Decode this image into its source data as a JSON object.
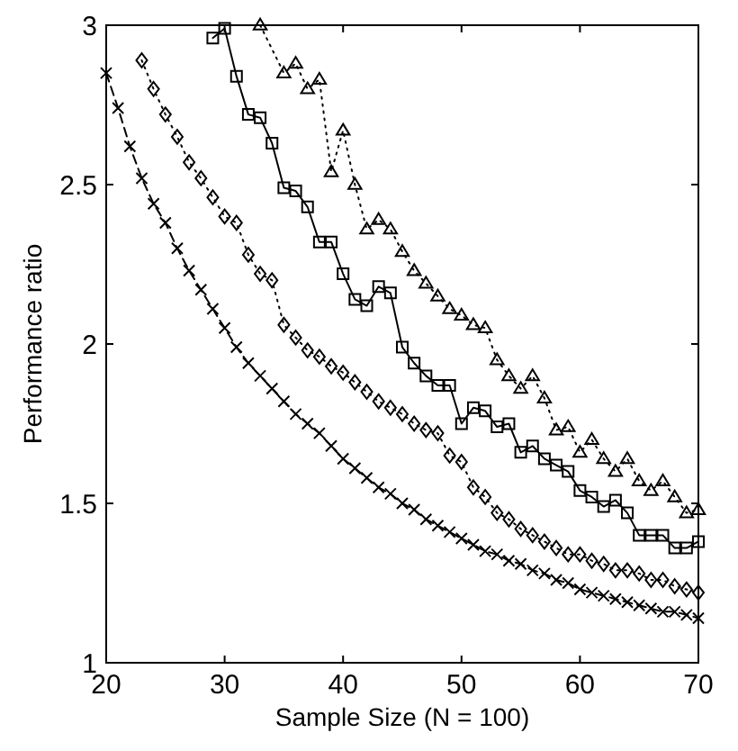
{
  "chart_data": {
    "type": "line",
    "xlabel": "Sample Size (N = 100)",
    "ylabel": "Performance ratio",
    "xlim": [
      20,
      70
    ],
    "ylim": [
      1,
      3
    ],
    "xticks": [
      20,
      30,
      40,
      50,
      60,
      70
    ],
    "yticks": [
      1,
      1.5,
      2,
      2.5,
      3
    ],
    "grid": false,
    "series": [
      {
        "color": "#000000",
        "marker": "cross",
        "line_style": "dashed",
        "x": [
          20,
          21,
          22,
          23,
          24,
          25,
          26,
          27,
          28,
          29,
          30,
          31,
          32,
          33,
          34,
          35,
          36,
          37,
          38,
          39,
          40,
          41,
          42,
          43,
          44,
          45,
          46,
          47,
          48,
          49,
          50,
          51,
          52,
          53,
          54,
          55,
          56,
          57,
          58,
          59,
          60,
          61,
          62,
          63,
          64,
          65,
          66,
          67,
          68,
          69,
          70
        ],
        "values": [
          2.85,
          2.74,
          2.62,
          2.52,
          2.44,
          2.38,
          2.3,
          2.23,
          2.17,
          2.11,
          2.05,
          1.99,
          1.94,
          1.9,
          1.86,
          1.82,
          1.78,
          1.75,
          1.72,
          1.68,
          1.64,
          1.61,
          1.58,
          1.55,
          1.53,
          1.5,
          1.48,
          1.45,
          1.43,
          1.41,
          1.39,
          1.37,
          1.35,
          1.34,
          1.32,
          1.31,
          1.29,
          1.28,
          1.26,
          1.25,
          1.23,
          1.22,
          1.21,
          1.2,
          1.19,
          1.18,
          1.17,
          1.16,
          1.16,
          1.15,
          1.14
        ]
      },
      {
        "color": "#000000",
        "marker": "diamond",
        "line_style": "dotted",
        "x": [
          23,
          24,
          25,
          26,
          27,
          28,
          29,
          30,
          31,
          32,
          33,
          34,
          35,
          36,
          37,
          38,
          39,
          40,
          41,
          42,
          43,
          44,
          45,
          46,
          47,
          48,
          49,
          50,
          51,
          52,
          53,
          54,
          55,
          56,
          57,
          58,
          59,
          60,
          61,
          62,
          63,
          64,
          65,
          66,
          67,
          68,
          69,
          70
        ],
        "values": [
          2.89,
          2.8,
          2.72,
          2.65,
          2.57,
          2.52,
          2.46,
          2.4,
          2.38,
          2.28,
          2.22,
          2.2,
          2.06,
          2.02,
          1.98,
          1.96,
          1.93,
          1.91,
          1.88,
          1.85,
          1.82,
          1.8,
          1.78,
          1.75,
          1.73,
          1.72,
          1.65,
          1.63,
          1.55,
          1.52,
          1.47,
          1.45,
          1.42,
          1.4,
          1.38,
          1.36,
          1.34,
          1.34,
          1.32,
          1.31,
          1.29,
          1.29,
          1.28,
          1.26,
          1.26,
          1.24,
          1.23,
          1.22
        ]
      },
      {
        "color": "#000000",
        "marker": "square",
        "line_style": "solid",
        "x": [
          29,
          30,
          31,
          32,
          33,
          34,
          35,
          36,
          37,
          38,
          39,
          40,
          41,
          42,
          43,
          44,
          45,
          46,
          47,
          48,
          49,
          50,
          51,
          52,
          53,
          54,
          55,
          56,
          57,
          58,
          59,
          60,
          61,
          62,
          63,
          64,
          65,
          66,
          67,
          68,
          69,
          70
        ],
        "values": [
          2.96,
          2.99,
          2.84,
          2.72,
          2.71,
          2.63,
          2.49,
          2.48,
          2.43,
          2.32,
          2.32,
          2.22,
          2.14,
          2.12,
          2.18,
          2.16,
          1.99,
          1.94,
          1.9,
          1.87,
          1.87,
          1.75,
          1.8,
          1.79,
          1.74,
          1.75,
          1.66,
          1.68,
          1.64,
          1.62,
          1.6,
          1.54,
          1.52,
          1.49,
          1.51,
          1.47,
          1.4,
          1.4,
          1.4,
          1.36,
          1.36,
          1.38
        ]
      },
      {
        "color": "#000000",
        "marker": "triangle",
        "line_style": "dotted",
        "x": [
          33,
          35,
          36,
          37,
          38,
          39,
          40,
          41,
          42,
          43,
          44,
          45,
          46,
          47,
          48,
          49,
          50,
          51,
          52,
          53,
          54,
          55,
          56,
          57,
          58,
          59,
          60,
          61,
          62,
          63,
          64,
          65,
          66,
          67,
          68,
          69,
          70
        ],
        "values": [
          3,
          2.85,
          2.88,
          2.8,
          2.83,
          2.54,
          2.67,
          2.5,
          2.36,
          2.39,
          2.36,
          2.29,
          2.23,
          2.19,
          2.15,
          2.11,
          2.09,
          2.06,
          2.05,
          1.95,
          1.9,
          1.86,
          1.9,
          1.83,
          1.73,
          1.74,
          1.66,
          1.7,
          1.64,
          1.6,
          1.64,
          1.57,
          1.54,
          1.57,
          1.52,
          1.47,
          1.48
        ]
      }
    ]
  }
}
